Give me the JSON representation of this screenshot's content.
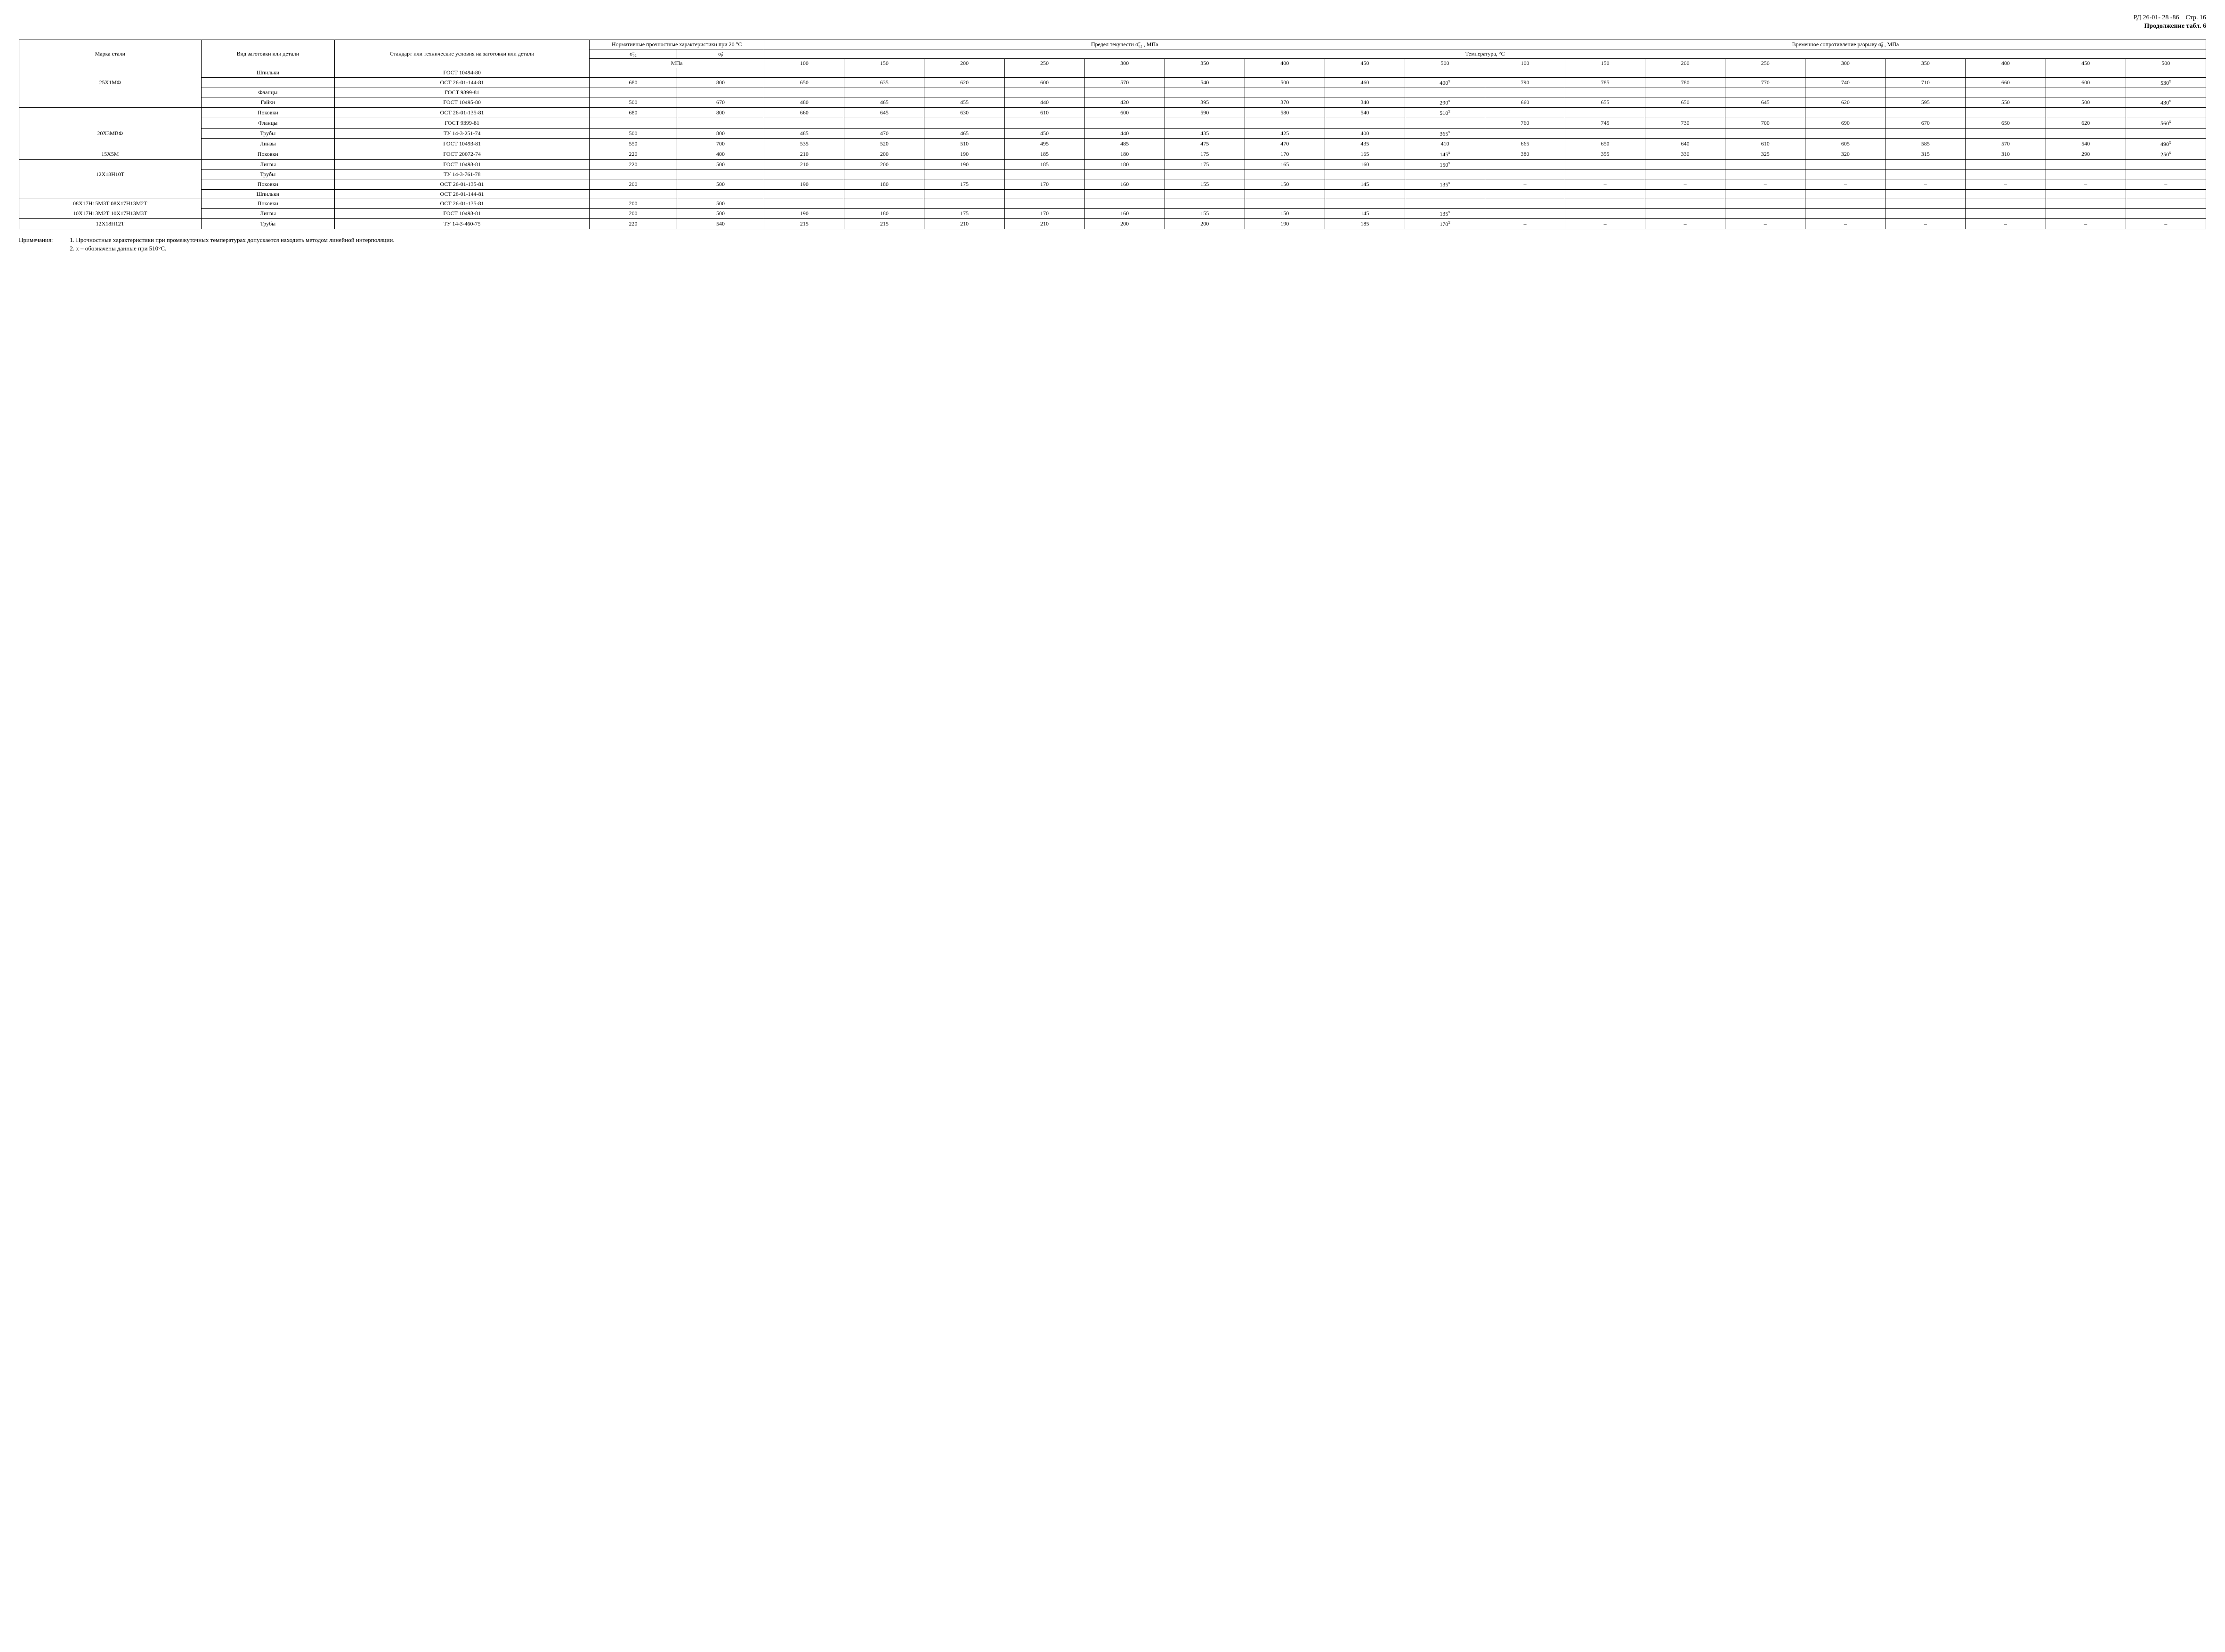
{
  "header": {
    "doc_code": "РД 26-01- 28 -86",
    "page_label": "Стр. 16",
    "continuation": "Продолжение табл. 6"
  },
  "columns": {
    "c1": "Марка стали",
    "c2": "Вид за­готовки или де­тали",
    "c3": "Стандарт или технические условия на заготовки или детали",
    "c4_group": "Нормативные прочностные характерис­тики при 20 °С",
    "c4a": "σ̃₀₂",
    "c4b": "σ̃ᵦ",
    "c4_unit": "МПа",
    "yield_group": "Предел текучести σ̃₀₂ , МПа",
    "tensile_group": "Временное сопротивление разрыву σ̃ᵦ , МПа",
    "temp_row": "Температура, °С",
    "temps": [
      "100",
      "150",
      "200",
      "250",
      "300",
      "350",
      "400",
      "450",
      "500",
      "100",
      "150",
      "200",
      "250",
      "300",
      "350",
      "400",
      "450",
      "500"
    ]
  },
  "rows": [
    {
      "m": "",
      "v": "Шпильки",
      "s": "ГОСТ 10494-80",
      "n": [
        "",
        "",
        "",
        "",
        "",
        "",
        "",
        "",
        "",
        "",
        "",
        "",
        "",
        "",
        "",
        "",
        "",
        "",
        "",
        ""
      ]
    },
    {
      "m": "25Х1МФ",
      "v": "",
      "s": "ОСТ 26-01-144-81",
      "n": [
        "680",
        "800",
        "650",
        "635",
        "620",
        "600",
        "570",
        "540",
        "500",
        "460",
        "400ˣ",
        "790",
        "785",
        "780",
        "770",
        "740",
        "710",
        "660",
        "600",
        "530ˣ"
      ]
    },
    {
      "m": "",
      "v": "Фланцы",
      "s": "ГОСТ 9399-81",
      "n": [
        "",
        "",
        "",
        "",
        "",
        "",
        "",
        "",
        "",
        "",
        "",
        "",
        "",
        "",
        "",
        "",
        "",
        "",
        "",
        ""
      ]
    },
    {
      "m": "",
      "v": "Гайки",
      "s": "ГОСТ 10495-80",
      "n": [
        "500",
        "670",
        "480",
        "465",
        "455",
        "440",
        "420",
        "395",
        "370",
        "340",
        "290ˣ",
        "660",
        "655",
        "650",
        "645",
        "620",
        "595",
        "550",
        "500",
        "430ˣ"
      ]
    },
    {
      "m": "",
      "v": "Поковки",
      "s": "ОСТ 26-01-135-81",
      "n": [
        "680",
        "800",
        "660",
        "645",
        "630",
        "610",
        "600",
        "590",
        "580",
        "540",
        "510ˣ",
        "",
        "",
        "",
        "",
        "",
        "",
        "",
        "",
        ""
      ]
    },
    {
      "m": "",
      "v": "Фланцы",
      "s": "ГОСТ 9399-81",
      "n": [
        "",
        "",
        "",
        "",
        "",
        "",
        "",
        "",
        "",
        "",
        "",
        "760",
        "745",
        "730",
        "700",
        "690",
        "670",
        "650",
        "620",
        "560ˣ"
      ]
    },
    {
      "m": "20Х3МВФ",
      "v": "Трубы",
      "s": "ТУ 14-3-251-74",
      "n": [
        "500",
        "800",
        "485",
        "470",
        "465",
        "450",
        "440",
        "435",
        "425",
        "400",
        "365ˣ",
        "",
        "",
        "",
        "",
        "",
        "",
        "",
        "",
        ""
      ]
    },
    {
      "m": "",
      "v": "Линзы",
      "s": "ГОСТ 10493-81",
      "n": [
        "550",
        "700",
        "535",
        "520",
        "510",
        "495",
        "485",
        "475",
        "470",
        "435",
        "410",
        "665",
        "650",
        "640",
        "610",
        "605",
        "585",
        "570",
        "540",
        "490ˣ"
      ]
    },
    {
      "m": "15Х5М",
      "v": "Поковки",
      "s": "ГОСТ 20072-74",
      "n": [
        "220",
        "400",
        "210",
        "200",
        "190",
        "185",
        "180",
        "175",
        "170",
        "165",
        "145ˣ",
        "380",
        "355",
        "330",
        "325",
        "320",
        "315",
        "310",
        "290",
        "250ˣ"
      ]
    },
    {
      "m": "",
      "v": "Линзы",
      "s": "ГОСТ 10493-81",
      "n": [
        "220",
        "500",
        "210",
        "200",
        "190",
        "185",
        "180",
        "175",
        "165",
        "160",
        "150ˣ",
        "–",
        "–",
        "–",
        "–",
        "–",
        "–",
        "–",
        "–",
        "–"
      ]
    },
    {
      "m": "12Х18Н10Т",
      "v": "Трубы",
      "s": "ТУ 14-3-761-78",
      "n": [
        "",
        "",
        "",
        "",
        "",
        "",
        "",
        "",
        "",
        "",
        "",
        "",
        "",
        "",
        "",
        "",
        "",
        "",
        "",
        ""
      ]
    },
    {
      "m": "",
      "v": "Поковки",
      "s": "ОСТ 26-01-135-81",
      "n": [
        "200",
        "500",
        "190",
        "180",
        "175",
        "170",
        "160",
        "155",
        "150",
        "145",
        "135ˣ",
        "–",
        "–",
        "–",
        "–",
        "–",
        "–",
        "–",
        "–",
        "–"
      ]
    },
    {
      "m": "",
      "v": "Шпильки",
      "s": "ОСТ 26-01-144-81",
      "n": [
        "",
        "",
        "",
        "",
        "",
        "",
        "",
        "",
        "",
        "",
        "",
        "",
        "",
        "",
        "",
        "",
        "",
        "",
        "",
        ""
      ]
    },
    {
      "m": "08Х17Н15М3Т 08Х17Н13М2Т",
      "v": "Поковки",
      "s": "ОСТ 26-01-135-81",
      "n": [
        "200",
        "500",
        "",
        "",
        "",
        "",
        "",
        "",
        "",
        "",
        "",
        "",
        "",
        "",
        "",
        "",
        "",
        "",
        "",
        ""
      ]
    },
    {
      "m": "10Х17Н13М2Т 10Х17Н13М3Т",
      "v": "Линзы",
      "s": "ГОСТ 10493-81",
      "n": [
        "200",
        "500",
        "190",
        "180",
        "175",
        "170",
        "160",
        "155",
        "150",
        "145",
        "135ˣ",
        "–",
        "–",
        "–",
        "–",
        "–",
        "–",
        "–",
        "–",
        "–"
      ]
    },
    {
      "m": "12Х18Н12Т",
      "v": "Трубы",
      "s": "ТУ 14-3-460-75",
      "n": [
        "220",
        "540",
        "215",
        "215",
        "210",
        "210",
        "200",
        "200",
        "190",
        "185",
        "170ˣ",
        "–",
        "–",
        "–",
        "–",
        "–",
        "–",
        "–",
        "–",
        "–"
      ]
    }
  ],
  "groups": [
    {
      "start": 0,
      "end": 3
    },
    {
      "start": 4,
      "end": 7
    },
    {
      "start": 8,
      "end": 8
    },
    {
      "start": 9,
      "end": 12
    },
    {
      "start": 13,
      "end": 14
    },
    {
      "start": 15,
      "end": 15
    }
  ],
  "notes": {
    "label": "Примечания:",
    "lines": [
      "1. Прочностные характеристики при промежуточных температурах допускается находить методом линейной интерполяции.",
      "2. х – обозначены данные при 510°С."
    ]
  }
}
